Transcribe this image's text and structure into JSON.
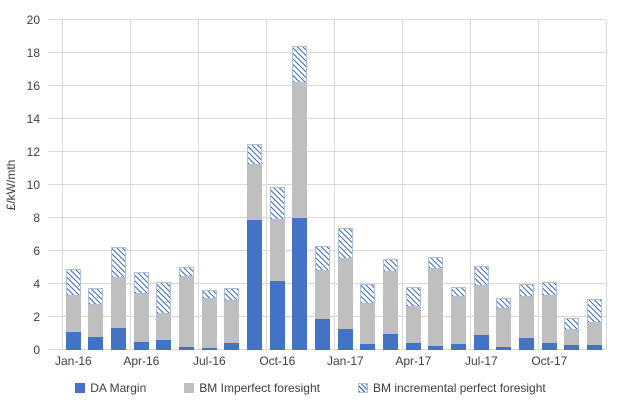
{
  "chart_data": {
    "type": "bar",
    "stacked": true,
    "title": "",
    "xlabel": "",
    "ylabel": "£/kW/mth",
    "ylim": [
      0,
      20
    ],
    "ytick_step": 2,
    "grid": true,
    "legend_position": "bottom",
    "label_every": 3,
    "categories": [
      "Jan-16",
      "Feb-16",
      "Mar-16",
      "Apr-16",
      "May-16",
      "Jun-16",
      "Jul-16",
      "Aug-16",
      "Sep-16",
      "Oct-16",
      "Nov-16",
      "Dec-16",
      "Jan-17",
      "Feb-17",
      "Mar-17",
      "Apr-17",
      "May-17",
      "Jun-17",
      "Jul-17",
      "Aug-17",
      "Sep-17",
      "Oct-17",
      "Nov-17",
      "Dec-17"
    ],
    "x_axis_labels_shown": [
      "Jan-16",
      "Apr-16",
      "Jul-16",
      "Oct-16",
      "Jan-17",
      "Apr-17",
      "Jul-17",
      "Oct-17"
    ],
    "series": [
      {
        "name": "DA Margin",
        "style": "solid",
        "color": "#4472C4",
        "values": [
          1.1,
          0.8,
          1.35,
          0.5,
          0.6,
          0.2,
          0.1,
          0.45,
          7.9,
          4.2,
          8.0,
          1.9,
          1.3,
          0.35,
          1.0,
          0.45,
          0.25,
          0.35,
          0.9,
          0.2,
          0.75,
          0.45,
          0.3,
          0.3
        ]
      },
      {
        "name": "BM Imperfect foresight",
        "style": "solid",
        "color": "#BFBFBF",
        "values": [
          2.2,
          1.9,
          3.0,
          2.9,
          1.6,
          4.25,
          3.0,
          2.55,
          3.3,
          3.7,
          8.2,
          2.9,
          4.2,
          2.45,
          3.75,
          2.15,
          4.65,
          2.85,
          3.0,
          2.3,
          2.45,
          2.85,
          0.9,
          1.35
        ]
      },
      {
        "name": "BM incremental perfect foresight",
        "style": "hatch",
        "color": "#4472C4",
        "hatch_background": "#FFFFFF",
        "values": [
          1.6,
          1.05,
          1.9,
          1.35,
          1.9,
          0.6,
          0.55,
          0.75,
          1.3,
          2.0,
          2.25,
          1.5,
          1.9,
          1.2,
          0.75,
          1.2,
          0.75,
          0.65,
          1.2,
          0.65,
          0.8,
          0.8,
          0.75,
          1.45
        ]
      }
    ],
    "colors": {
      "grid": "#D9D9D9",
      "text": "#404040",
      "background": "#FFFFFF"
    }
  }
}
